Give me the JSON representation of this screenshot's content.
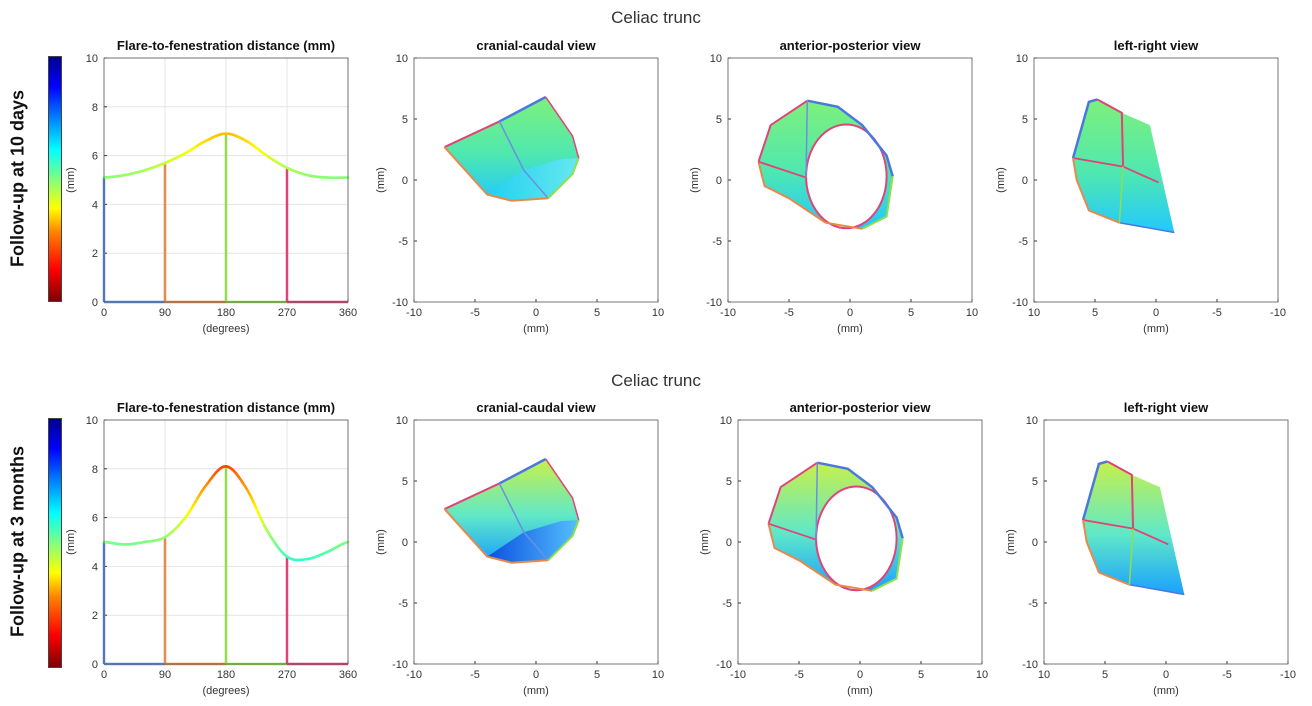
{
  "rows": [
    {
      "row_label": "Follow-up at 10 days",
      "super_title": "Celiac trunc"
    },
    {
      "row_label": "Follow-up at 3 months",
      "super_title": "Celiac trunc"
    }
  ],
  "colormap": "jet",
  "chart_data": [
    {
      "type": "line",
      "title": "Flare-to-fenestration distance (mm)",
      "xlabel": "(degrees)",
      "ylabel": "(mm)",
      "xlim": [
        0,
        360
      ],
      "ylim": [
        0,
        10
      ],
      "xticks": [
        "0",
        "90",
        "180",
        "270",
        "360"
      ],
      "yticks": [
        "0",
        "2",
        "4",
        "6",
        "8",
        "10"
      ],
      "grid": true,
      "x": [
        0,
        30,
        60,
        90,
        120,
        150,
        180,
        210,
        240,
        270,
        300,
        330,
        360
      ],
      "series": [
        {
          "values": [
            5.1,
            5.2,
            5.4,
            5.7,
            6.1,
            6.6,
            6.9,
            6.6,
            6.0,
            5.5,
            5.2,
            5.1,
            5.1
          ]
        }
      ],
      "markers": [
        {
          "x": 0,
          "y": 5.1,
          "color": "#5a8ee6"
        },
        {
          "x": 90,
          "y": 5.7,
          "color": "#e8884a"
        },
        {
          "x": 180,
          "y": 6.9,
          "color": "#8fe04a"
        },
        {
          "x": 270,
          "y": 5.5,
          "color": "#e0437a"
        }
      ]
    },
    {
      "type": "other",
      "title": "cranial-caudal view",
      "xlabel": "(mm)",
      "ylabel": "(mm)",
      "xlim": [
        -10,
        10
      ],
      "ylim": [
        -10,
        10
      ],
      "xticks": [
        "-10",
        "-5",
        "0",
        "5",
        "10"
      ],
      "yticks": [
        "-10",
        "-5",
        "0",
        "5",
        "10"
      ]
    },
    {
      "type": "other",
      "title": "anterior-posterior view",
      "xlabel": "(mm)",
      "ylabel": "(mm)",
      "xlim": [
        -10,
        10
      ],
      "ylim": [
        -10,
        10
      ],
      "xticks": [
        "-10",
        "-5",
        "0",
        "5",
        "10"
      ],
      "yticks": [
        "-10",
        "-5",
        "0",
        "5",
        "10"
      ]
    },
    {
      "type": "other",
      "title": "left-right view",
      "xlabel": "(mm)",
      "ylabel": "(mm)",
      "xlim": [
        10,
        -10
      ],
      "ylim": [
        -10,
        10
      ],
      "xticks": [
        "10",
        "5",
        "0",
        "-5",
        "-10"
      ],
      "yticks": [
        "-10",
        "-5",
        "0",
        "5",
        "10"
      ]
    },
    {
      "type": "line",
      "title": "Flare-to-fenestration distance (mm)",
      "xlabel": "(degrees)",
      "ylabel": "(mm)",
      "xlim": [
        0,
        360
      ],
      "ylim": [
        0,
        10
      ],
      "xticks": [
        "0",
        "90",
        "180",
        "270",
        "360"
      ],
      "yticks": [
        "0",
        "2",
        "4",
        "6",
        "8",
        "10"
      ],
      "grid": true,
      "x": [
        0,
        30,
        60,
        90,
        120,
        150,
        180,
        210,
        240,
        270,
        300,
        330,
        360
      ],
      "series": [
        {
          "values": [
            5.0,
            4.9,
            5.0,
            5.2,
            6.0,
            7.3,
            8.1,
            7.2,
            5.5,
            4.4,
            4.3,
            4.6,
            5.0
          ]
        }
      ],
      "markers": [
        {
          "x": 0,
          "y": 5.0,
          "color": "#5a8ee6"
        },
        {
          "x": 90,
          "y": 5.2,
          "color": "#e8884a"
        },
        {
          "x": 180,
          "y": 8.1,
          "color": "#8fe04a"
        },
        {
          "x": 270,
          "y": 4.4,
          "color": "#e0437a"
        }
      ]
    },
    {
      "type": "other",
      "title": "cranial-caudal view",
      "xlabel": "(mm)",
      "ylabel": "(mm)",
      "xlim": [
        -10,
        10
      ],
      "ylim": [
        -10,
        10
      ],
      "xticks": [
        "-10",
        "-5",
        "0",
        "5",
        "10"
      ],
      "yticks": [
        "-10",
        "-5",
        "0",
        "5",
        "10"
      ]
    },
    {
      "type": "other",
      "title": "anterior-posterior view",
      "xlabel": "(mm)",
      "ylabel": "(mm)",
      "xlim": [
        -10,
        10
      ],
      "ylim": [
        -10,
        10
      ],
      "xticks": [
        "-10",
        "-5",
        "0",
        "5",
        "10"
      ],
      "yticks": [
        "-10",
        "-5",
        "0",
        "5",
        "10"
      ]
    },
    {
      "type": "other",
      "title": "left-right view",
      "xlabel": "(mm)",
      "ylabel": "(mm)",
      "xlim": [
        10,
        -10
      ],
      "ylim": [
        -10,
        10
      ],
      "xticks": [
        "10",
        "5",
        "0",
        "-5",
        "-10"
      ],
      "yticks": [
        "-10",
        "-5",
        "0",
        "5",
        "10"
      ]
    }
  ]
}
